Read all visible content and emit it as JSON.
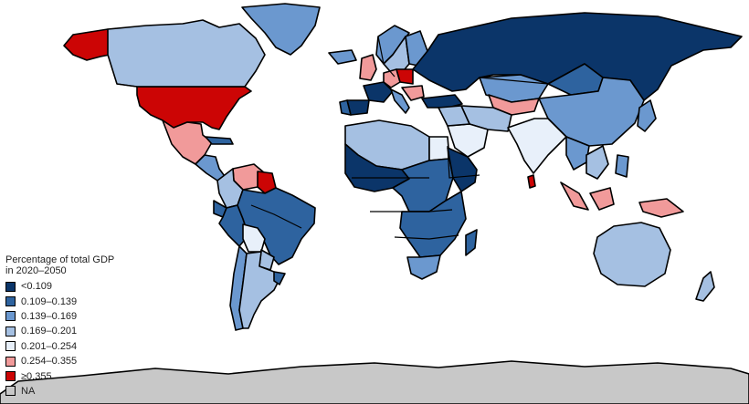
{
  "legend": {
    "title_line1": "Percentage of total GDP",
    "title_line2": "in 2020–2050",
    "items": [
      {
        "label": "<0.109",
        "color": "#0b3569"
      },
      {
        "label": "0.109–0.139",
        "color": "#2e639f"
      },
      {
        "label": "0.139–0.169",
        "color": "#6b98cf"
      },
      {
        "label": "0.169–0.201",
        "color": "#a5c0e2"
      },
      {
        "label": "0.201–0.254",
        "color": "#e8f0fa"
      },
      {
        "label": "0.254–0.355",
        "color": "#f19a9a"
      },
      {
        "label": "≥0.355",
        "color": "#cc0505"
      },
      {
        "label": "NA",
        "color": "#c8c8c8"
      }
    ]
  },
  "regions": [
    {
      "name": "United States",
      "class": "≥0.355"
    },
    {
      "name": "Alaska",
      "class": "≥0.355"
    },
    {
      "name": "Canada",
      "class": "0.169–0.201"
    },
    {
      "name": "Greenland",
      "class": "0.139–0.169"
    },
    {
      "name": "Mexico",
      "class": "0.254–0.355"
    },
    {
      "name": "Cuba",
      "class": "0.109–0.139"
    },
    {
      "name": "Central America",
      "class": "0.139–0.169"
    },
    {
      "name": "Venezuela",
      "class": "0.254–0.355"
    },
    {
      "name": "Guyana",
      "class": "≥0.355"
    },
    {
      "name": "Colombia",
      "class": "0.169–0.201"
    },
    {
      "name": "Ecuador",
      "class": "0.109–0.139"
    },
    {
      "name": "Peru",
      "class": "0.109–0.139"
    },
    {
      "name": "Brazil",
      "class": "0.109–0.139"
    },
    {
      "name": "Bolivia",
      "class": "0.201–0.254"
    },
    {
      "name": "Paraguay",
      "class": "0.169–0.201"
    },
    {
      "name": "Chile",
      "class": "0.139–0.169"
    },
    {
      "name": "Argentina",
      "class": "0.169–0.201"
    },
    {
      "name": "Uruguay",
      "class": "0.109–0.139"
    },
    {
      "name": "Iceland",
      "class": "0.139–0.169"
    },
    {
      "name": "United Kingdom",
      "class": "0.254–0.355"
    },
    {
      "name": "Norway",
      "class": "0.139–0.169"
    },
    {
      "name": "Sweden",
      "class": "0.169–0.201"
    },
    {
      "name": "Finland",
      "class": "0.139–0.169"
    },
    {
      "name": "France",
      "class": "<0.109"
    },
    {
      "name": "Spain",
      "class": "<0.109"
    },
    {
      "name": "Portugal",
      "class": "0.109–0.139"
    },
    {
      "name": "Germany",
      "class": "0.254–0.355"
    },
    {
      "name": "Poland",
      "class": "≥0.355"
    },
    {
      "name": "Italy",
      "class": "0.139–0.169"
    },
    {
      "name": "Balkans",
      "class": "0.254–0.355"
    },
    {
      "name": "Turkey",
      "class": "<0.109"
    },
    {
      "name": "Russia",
      "class": "<0.109"
    },
    {
      "name": "Kazakhstan",
      "class": "0.139–0.169"
    },
    {
      "name": "Mongolia",
      "class": "0.109–0.139"
    },
    {
      "name": "China",
      "class": "0.139–0.169"
    },
    {
      "name": "Central Asia",
      "class": "0.254–0.355"
    },
    {
      "name": "Iran",
      "class": "0.169–0.201"
    },
    {
      "name": "Saudi Arabia",
      "class": "0.201–0.254"
    },
    {
      "name": "Middle East",
      "class": "0.169–0.201"
    },
    {
      "name": "India",
      "class": "0.201–0.254"
    },
    {
      "name": "Sri Lanka",
      "class": "≥0.355"
    },
    {
      "name": "Myanmar",
      "class": "0.139–0.169"
    },
    {
      "name": "Southeast Asia",
      "class": "0.169–0.201"
    },
    {
      "name": "Japan",
      "class": "0.139–0.169"
    },
    {
      "name": "Sumatra",
      "class": "0.254–0.355"
    },
    {
      "name": "Borneo",
      "class": "0.254–0.355"
    },
    {
      "name": "Philippines",
      "class": "0.139–0.169"
    },
    {
      "name": "New Guinea",
      "class": "0.254–0.355"
    },
    {
      "name": "Australia",
      "class": "0.169–0.201"
    },
    {
      "name": "New Zealand",
      "class": "0.169–0.201"
    },
    {
      "name": "North Africa",
      "class": "0.169–0.201"
    },
    {
      "name": "Egypt",
      "class": "0.201–0.254"
    },
    {
      "name": "West Africa",
      "class": "<0.109"
    },
    {
      "name": "Central Africa",
      "class": "0.109–0.139"
    },
    {
      "name": "East Africa",
      "class": "<0.109"
    },
    {
      "name": "Southern Africa",
      "class": "0.109–0.139"
    },
    {
      "name": "South Africa",
      "class": "0.139–0.169"
    },
    {
      "name": "Madagascar",
      "class": "0.109–0.139"
    },
    {
      "name": "Antarctica",
      "class": "NA"
    }
  ]
}
